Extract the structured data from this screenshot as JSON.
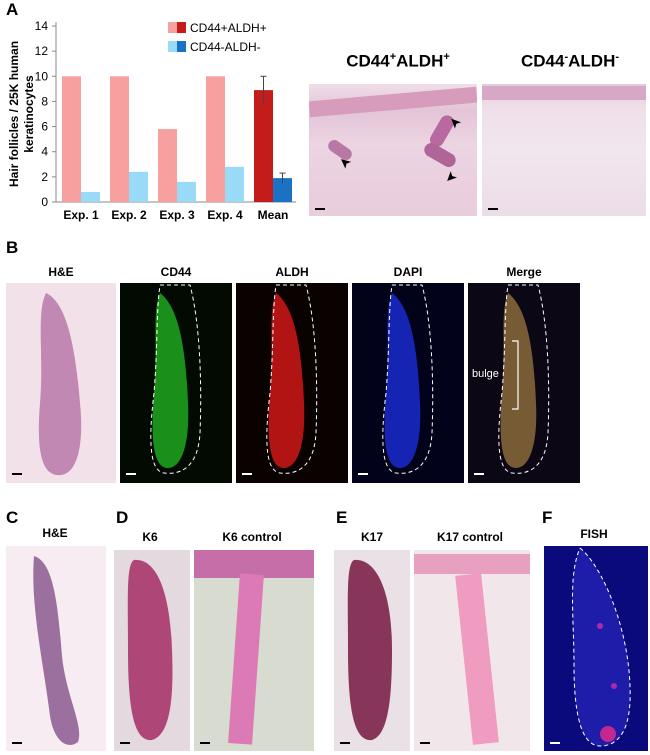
{
  "panel_labels": {
    "a": "A",
    "b": "B",
    "c": "C",
    "d": "D",
    "e": "E",
    "f": "F"
  },
  "chart_data": {
    "type": "bar",
    "categories": [
      "Exp. 1",
      "Exp. 2",
      "Exp. 3",
      "Exp. 4",
      "Mean"
    ],
    "series": [
      {
        "name": "CD44+ALDH+",
        "values": [
          10.0,
          10.0,
          5.8,
          10.0,
          8.9
        ],
        "colors": [
          "#f8a0a0",
          "#f8a0a0",
          "#f8a0a0",
          "#f8a0a0",
          "#c41b1b"
        ],
        "legend_color": "#c41b1b",
        "legend_color_light": "#f8a0a0"
      },
      {
        "name": "CD44-ALDH-",
        "values": [
          0.8,
          2.4,
          1.6,
          2.8,
          1.9
        ],
        "colors": [
          "#99daf7",
          "#99daf7",
          "#99daf7",
          "#99daf7",
          "#1b72c4"
        ],
        "legend_color": "#1b72c4",
        "legend_color_light": "#99daf7"
      }
    ],
    "error_bars": {
      "Mean": {
        "CD44+ALDH+": 1.1,
        "CD44-ALDH-": 0.4
      }
    },
    "ylabel": "Hair follicles / 25K human keratinocytes",
    "ylabel_lines": [
      "Hair follicles / 25K human",
      "keratinocytes"
    ],
    "ylim": [
      0,
      14
    ],
    "yticks": [
      "0",
      "2",
      "4",
      "6",
      "8",
      "10",
      "12",
      "14"
    ],
    "legend_position": "top-right",
    "grid": false
  },
  "panel_a_images": {
    "left_title": {
      "main1": "CD44",
      "sup1": "+",
      "main2": "ALDH",
      "sup2": "+"
    },
    "right_title": {
      "main1": "CD44",
      "sup1": "-",
      "main2": "ALDH",
      "sup2": "-"
    }
  },
  "panel_b": {
    "captions": [
      "H&E",
      "CD44",
      "ALDH",
      "DAPI",
      "Merge"
    ],
    "bulge_label": "bulge"
  },
  "panel_c": {
    "caption": "H&E"
  },
  "panel_d": {
    "captions": [
      "K6",
      "K6 control"
    ]
  },
  "panel_e": {
    "captions": [
      "K17",
      "K17 control"
    ]
  },
  "panel_f": {
    "caption": "FISH"
  },
  "colors": {
    "he_pink": "#e8b6cf",
    "fluor_green": "#1fa81f",
    "fluor_red": "#d01818",
    "fluor_blue": "#1a2ad0",
    "background": "#ffffff"
  }
}
